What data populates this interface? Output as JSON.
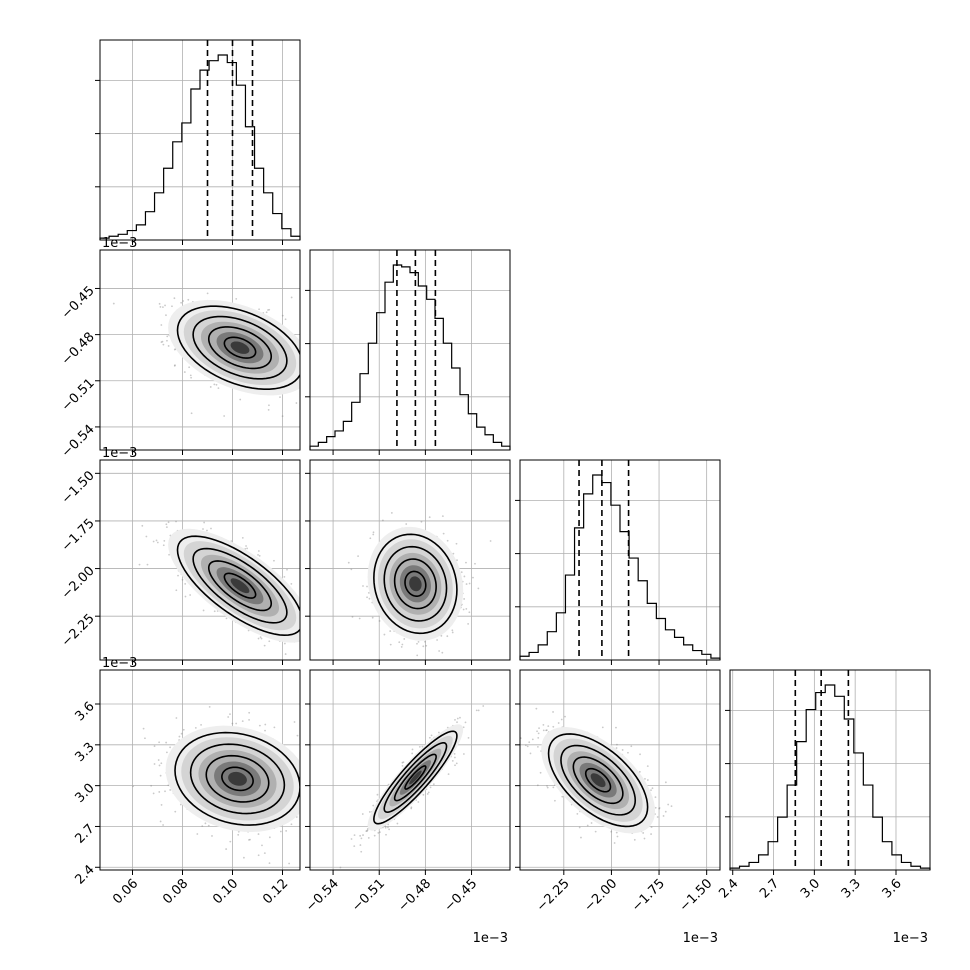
{
  "chart_data": {
    "type": "corner",
    "parameters": [
      {
        "range": [
          0.047,
          0.127
        ],
        "ticks": [
          0.06,
          0.08,
          0.1,
          0.12
        ],
        "tick_labels": [
          "0.06",
          "0.08",
          "0.10",
          "0.12"
        ],
        "offset_text": "",
        "quantiles": [
          0.09,
          0.1,
          0.108
        ],
        "hist_edges": [
          0.047,
          0.127
        ],
        "hist_counts": [
          1,
          2,
          3,
          5,
          8,
          15,
          25,
          38,
          52,
          62,
          80,
          90,
          95,
          98,
          94,
          82,
          60,
          38,
          25,
          14,
          6,
          2
        ]
      },
      {
        "range": [
          -0.555,
          -0.425
        ],
        "ticks": [
          -0.54,
          -0.51,
          -0.48,
          -0.45
        ],
        "tick_labels": [
          "−0.54",
          "−0.51",
          "−0.48",
          "−0.45"
        ],
        "offset_text": "1e−3",
        "quantiles": [
          -0.4985,
          -0.4865,
          -0.4735
        ],
        "hist_edges": [
          -0.555,
          -0.425
        ],
        "hist_counts": [
          2,
          4,
          7,
          10,
          15,
          25,
          40,
          56,
          72,
          88,
          97,
          96,
          93,
          86,
          79,
          69,
          56,
          43,
          29,
          19,
          12,
          8,
          4,
          2
        ]
      },
      {
        "range": [
          -2.48,
          -1.43
        ],
        "ticks": [
          -2.25,
          -2.0,
          -1.75,
          -1.5
        ],
        "tick_labels": [
          "−2.25",
          "−2.00",
          "−1.75",
          "−1.50"
        ],
        "offset_text": "1e−3",
        "quantiles": [
          -2.17,
          -2.05,
          -1.91
        ],
        "hist_edges": [
          -2.48,
          -1.43
        ],
        "hist_counts": [
          2,
          4,
          8,
          15,
          25,
          45,
          70,
          88,
          98,
          94,
          82,
          68,
          54,
          42,
          30,
          22,
          16,
          12,
          8,
          5,
          3,
          1
        ]
      },
      {
        "range": [
          2.38,
          3.85
        ],
        "ticks": [
          2.4,
          2.7,
          3.0,
          3.3,
          3.6
        ],
        "tick_labels": [
          "2.4",
          "2.7",
          "3.0",
          "3.3",
          "3.6"
        ],
        "offset_text": "1e−3",
        "quantiles": [
          2.86,
          3.05,
          3.25
        ],
        "hist_edges": [
          2.38,
          3.85
        ],
        "hist_counts": [
          1,
          2,
          4,
          8,
          15,
          28,
          45,
          68,
          85,
          94,
          98,
          92,
          80,
          62,
          45,
          28,
          15,
          8,
          4,
          2,
          1
        ]
      }
    ],
    "pairs": [
      {
        "x": 0,
        "y": 1,
        "center": [
          0.103,
          -0.4885
        ],
        "spread": [
          0.0125,
          0.0135
        ],
        "rho": -0.42
      },
      {
        "x": 0,
        "y": 2,
        "center": [
          0.103,
          -2.09
        ],
        "spread": [
          0.0125,
          0.13
        ],
        "rho": -0.72
      },
      {
        "x": 1,
        "y": 2,
        "center": [
          -0.4865,
          -2.08
        ],
        "spread": [
          0.0135,
          0.13
        ],
        "rho": -0.12
      },
      {
        "x": 0,
        "y": 3,
        "center": [
          0.102,
          3.05
        ],
        "spread": [
          0.0125,
          0.17
        ],
        "rho": -0.18
      },
      {
        "x": 1,
        "y": 3,
        "center": [
          -0.4865,
          3.06
        ],
        "spread": [
          0.0135,
          0.17
        ],
        "rho": 0.9
      },
      {
        "x": 2,
        "y": 3,
        "center": [
          -2.07,
          3.04
        ],
        "spread": [
          0.13,
          0.17
        ],
        "rho": -0.58
      }
    ],
    "contour_levels": [
      0.5,
      1.0,
      1.5,
      2.0
    ],
    "grid": true,
    "histogram_style": "step",
    "quantile_line_style": "dashed"
  }
}
